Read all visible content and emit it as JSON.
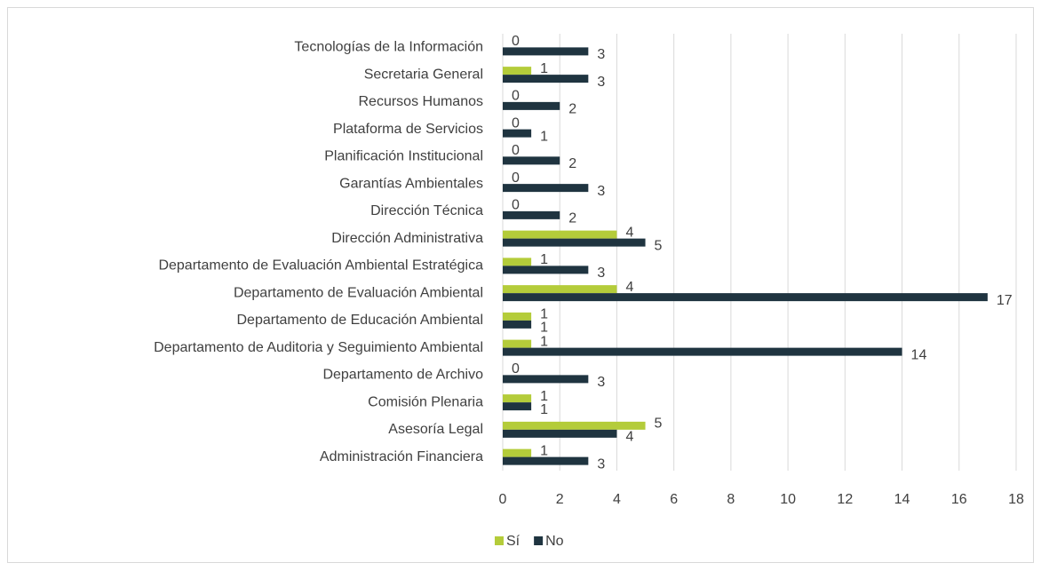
{
  "chart_data": {
    "type": "bar",
    "orientation": "horizontal",
    "categories": [
      "Administración Financiera",
      "Asesoría Legal",
      "Comisión Plenaria",
      "Departamento de Archivo",
      "Departamento de Auditoria y Seguimiento Ambiental",
      "Departamento de Educación Ambiental",
      "Departamento de Evaluación Ambiental",
      "Departamento de Evaluación Ambiental Estratégica",
      "Dirección Administrativa",
      "Dirección Técnica",
      "Garantías Ambientales",
      "Planificación Institucional",
      "Plataforma de Servicios",
      "Recursos Humanos",
      "Secretaria General",
      "Tecnologías de la Información"
    ],
    "series": [
      {
        "name": "Sí",
        "color": "#b4cc3a",
        "values": [
          1,
          5,
          1,
          0,
          1,
          1,
          4,
          1,
          4,
          0,
          0,
          0,
          0,
          0,
          1,
          0
        ]
      },
      {
        "name": "No",
        "color": "#1f3440",
        "values": [
          3,
          4,
          1,
          3,
          14,
          1,
          17,
          3,
          5,
          2,
          3,
          2,
          1,
          2,
          3,
          3
        ]
      }
    ],
    "xlim": [
      0,
      18
    ],
    "xticks": [
      0,
      2,
      4,
      6,
      8,
      10,
      12,
      14,
      16,
      18
    ],
    "grid": true,
    "legend": "bottom"
  }
}
